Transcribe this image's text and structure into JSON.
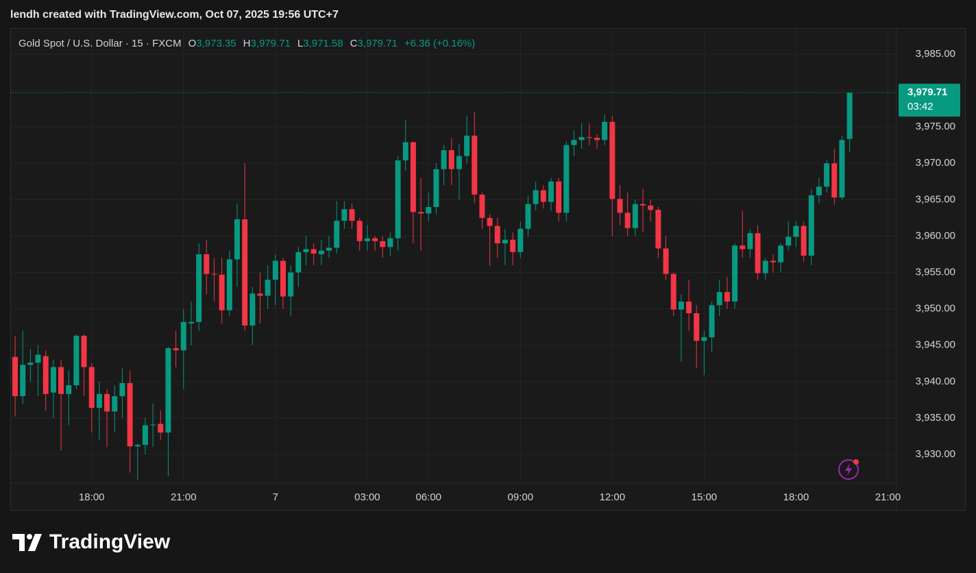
{
  "attribution": "lendh created with TradingView.com, Oct 07, 2025 19:56 UTC+7",
  "brand": "TradingView",
  "header": {
    "symbol": "Gold Spot / U.S. Dollar · 15 · FXCM",
    "o": "O",
    "open": "3,973.35",
    "h": "H",
    "high": "3,979.71",
    "l": "L",
    "low": "3,971.58",
    "c": "C",
    "close": "3,979.71",
    "change": "+6.36 (+0.16%)"
  },
  "chart_data": {
    "type": "candlestick",
    "up_color": "#089981",
    "down_color": "#f23645",
    "xlim": [
      -0.63,
      115.12
    ],
    "xticks": [
      {
        "value": 10,
        "label": "18:00"
      },
      {
        "value": 22,
        "label": "21:00"
      },
      {
        "value": 34,
        "label": "7"
      },
      {
        "value": 46,
        "label": "03:00"
      },
      {
        "value": 54,
        "label": "06:00"
      },
      {
        "value": 66,
        "label": "09:00"
      },
      {
        "value": 78,
        "label": "12:00"
      },
      {
        "value": 90,
        "label": "15:00"
      },
      {
        "value": 102,
        "label": "18:00"
      },
      {
        "value": 114,
        "label": "21:00"
      }
    ],
    "ylim": [
      3926.04,
      3988.58
    ],
    "yticks": [
      {
        "value": 3930,
        "label": "3,930.00"
      },
      {
        "value": 3935,
        "label": "3,935.00"
      },
      {
        "value": 3940,
        "label": "3,940.00"
      },
      {
        "value": 3945,
        "label": "3,945.00"
      },
      {
        "value": 3950,
        "label": "3,950.00"
      },
      {
        "value": 3955,
        "label": "3,955.00"
      },
      {
        "value": 3960,
        "label": "3,960.00"
      },
      {
        "value": 3965,
        "label": "3,965.00"
      },
      {
        "value": 3970,
        "label": "3,970.00"
      },
      {
        "value": 3975,
        "label": "3,975.00"
      },
      {
        "value": 3980,
        "label": "3,980.00"
      },
      {
        "value": 3985,
        "label": "3,985.00"
      }
    ],
    "grid": true,
    "last_price": {
      "value": 3979.71,
      "label": "3,979.71"
    },
    "countdown": "03:42",
    "open": [
      3943.4,
      3938.0,
      3942.3,
      3942.6,
      3943.5,
      3938.5,
      3942.0,
      3938.3,
      3939.5,
      3946.3,
      3942.0,
      3936.4,
      3938.3,
      3935.9,
      3938.0,
      3939.8,
      3931.1,
      3931.3,
      3934.0,
      3934.2,
      3933.0,
      3944.6,
      3944.3,
      3948.0,
      3948.2,
      3957.5,
      3954.8,
      3954.7,
      3949.8,
      3956.8,
      3962.3,
      3947.7,
      3952.1,
      3951.8,
      3954.0,
      3956.6,
      3951.7,
      3955.0,
      3957.8,
      3958.2,
      3957.5,
      3958.0,
      3958.4,
      3962.1,
      3963.7,
      3962.1,
      3959.3,
      3959.7,
      3959.3,
      3958.5,
      3959.7,
      3970.4,
      3972.9,
      3963.3,
      3963.1,
      3964.0,
      3969.2,
      3971.8,
      3969.2,
      3971.0,
      3973.8,
      3965.7,
      3962.5,
      3961.4,
      3959.0,
      3959.5,
      3957.8,
      3961.0,
      3964.4,
      3966.3,
      3964.7,
      3967.5,
      3963.2,
      3972.5,
      3973.2,
      3973.6,
      3973.5,
      3973.2,
      3975.7,
      3965.1,
      3963.2,
      3961.1,
      3964.4,
      3964.2,
      3963.6,
      3958.3,
      3954.8,
      3949.9,
      3951.0,
      3949.4,
      3945.6,
      3946.1,
      3950.5,
      3952.3,
      3951.0,
      3958.7,
      3958.2,
      3960.4,
      3954.9,
      3956.6,
      3956.4,
      3958.7,
      3959.9,
      3961.4,
      3957.3,
      3965.6,
      3966.8,
      3970.0,
      3965.3,
      3973.35
    ],
    "high": [
      3946.3,
      3947.0,
      3944.5,
      3945.0,
      3944.3,
      3943.0,
      3943.0,
      3941.5,
      3946.5,
      3946.5,
      3942.5,
      3940.0,
      3939.0,
      3939.5,
      3941.8,
      3941.5,
      3931.5,
      3935.0,
      3937.0,
      3936.0,
      3944.8,
      3947.0,
      3950.0,
      3951.0,
      3959.0,
      3959.5,
      3957.0,
      3957.0,
      3958.0,
      3964.5,
      3970.0,
      3953.0,
      3955.0,
      3956.0,
      3957.5,
      3957.0,
      3956.0,
      3958.5,
      3960.0,
      3959.0,
      3959.5,
      3960.0,
      3964.8,
      3964.8,
      3964.5,
      3962.5,
      3961.5,
      3960.0,
      3960.0,
      3960.5,
      3971.0,
      3976.0,
      3973.0,
      3968.0,
      3966.0,
      3970.0,
      3972.5,
      3973.5,
      3972.7,
      3976.5,
      3977.0,
      3966.0,
      3963.0,
      3962.5,
      3961.0,
      3960.5,
      3962.0,
      3965.5,
      3967.5,
      3967.0,
      3968.0,
      3968.0,
      3973.0,
      3974.5,
      3975.5,
      3975.5,
      3974.0,
      3976.7,
      3976.5,
      3967.0,
      3966.0,
      3965.0,
      3966.5,
      3965.0,
      3964.0,
      3960.0,
      3955.0,
      3952.0,
      3954.0,
      3950.5,
      3947.0,
      3951.0,
      3954.0,
      3954.4,
      3959.0,
      3963.5,
      3961.0,
      3961.5,
      3957.0,
      3957.5,
      3959.0,
      3962.0,
      3962.0,
      3962.0,
      3966.5,
      3968.0,
      3970.5,
      3972.0,
      3973.8,
      3979.71
    ],
    "low": [
      3935.2,
      3936.9,
      3940.0,
      3938.0,
      3936.0,
      3935.0,
      3930.5,
      3934.0,
      3939.0,
      3938.0,
      3933.0,
      3932.0,
      3931.0,
      3933.0,
      3935.0,
      3927.5,
      3926.5,
      3930.0,
      3931.0,
      3932.0,
      3927.0,
      3942.0,
      3939.0,
      3945.0,
      3947.0,
      3952.0,
      3951.0,
      3948.0,
      3949.0,
      3953.0,
      3947.0,
      3945.0,
      3948.0,
      3950.0,
      3950.5,
      3950.0,
      3949.0,
      3953.0,
      3956.0,
      3956.0,
      3956.0,
      3957.0,
      3957.6,
      3961.0,
      3961.0,
      3958.0,
      3958.0,
      3958.0,
      3957.0,
      3957.3,
      3958.0,
      3969.0,
      3959.0,
      3958.0,
      3962.0,
      3963.0,
      3967.0,
      3967.0,
      3965.0,
      3970.0,
      3964.5,
      3961.0,
      3955.9,
      3957.0,
      3956.0,
      3956.0,
      3957.0,
      3960.0,
      3963.5,
      3963.8,
      3963.5,
      3962.0,
      3962.0,
      3971.0,
      3972.0,
      3972.5,
      3972.0,
      3972.5,
      3960.0,
      3961.5,
      3960.0,
      3960.0,
      3960.5,
      3962.0,
      3957.0,
      3954.0,
      3949.0,
      3942.7,
      3947.0,
      3941.9,
      3940.9,
      3944.0,
      3949.0,
      3950.0,
      3950.0,
      3957.0,
      3957.0,
      3954.0,
      3954.0,
      3955.0,
      3955.0,
      3958.0,
      3958.5,
      3956.5,
      3956.0,
      3964.5,
      3966.0,
      3964.3,
      3965.0,
      3971.58
    ],
    "close": [
      3938.0,
      3942.3,
      3942.6,
      3943.7,
      3938.3,
      3942.0,
      3938.3,
      3939.5,
      3946.3,
      3942.0,
      3936.4,
      3938.3,
      3935.9,
      3938.0,
      3939.8,
      3931.1,
      3931.3,
      3934.0,
      3934.1,
      3933.0,
      3944.6,
      3944.3,
      3948.2,
      3948.2,
      3957.5,
      3954.8,
      3954.7,
      3949.8,
      3956.8,
      3962.3,
      3947.7,
      3952.1,
      3951.8,
      3954.0,
      3956.6,
      3951.7,
      3955.0,
      3957.8,
      3958.2,
      3957.6,
      3958.0,
      3958.4,
      3962.1,
      3963.7,
      3962.1,
      3959.3,
      3959.7,
      3959.3,
      3958.5,
      3959.7,
      3970.4,
      3972.9,
      3963.3,
      3963.1,
      3964.0,
      3969.2,
      3971.8,
      3969.2,
      3971.0,
      3973.8,
      3965.7,
      3962.5,
      3961.4,
      3959.0,
      3959.5,
      3957.8,
      3961.0,
      3964.4,
      3966.3,
      3964.7,
      3967.5,
      3963.2,
      3972.5,
      3973.2,
      3973.6,
      3973.5,
      3973.2,
      3975.7,
      3965.1,
      3963.2,
      3961.1,
      3964.4,
      3964.2,
      3963.6,
      3958.3,
      3954.8,
      3949.9,
      3951.0,
      3949.4,
      3945.6,
      3946.1,
      3950.5,
      3952.3,
      3951.0,
      3958.7,
      3958.2,
      3960.4,
      3954.9,
      3956.6,
      3956.4,
      3958.7,
      3959.9,
      3961.4,
      3957.3,
      3965.6,
      3966.8,
      3970.0,
      3965.3,
      3973.2,
      3979.71
    ]
  }
}
